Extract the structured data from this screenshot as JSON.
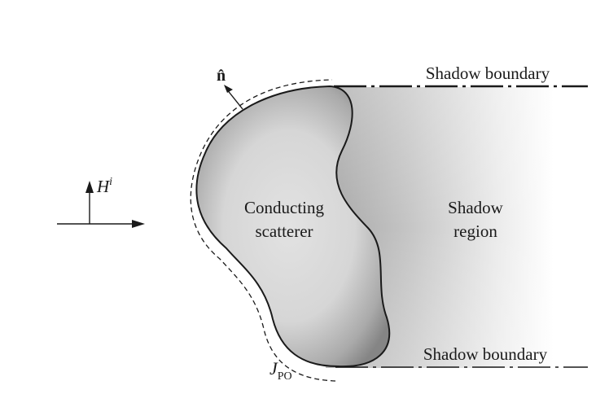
{
  "labels": {
    "normal": "n̂",
    "field_symbol": "H",
    "field_superscript": "i",
    "scatterer_line1": "Conducting",
    "scatterer_line2": "scatterer",
    "shadow_line1": "Shadow",
    "shadow_line2": "region",
    "boundary_top": "Shadow boundary",
    "boundary_bottom": "Shadow boundary",
    "current_symbol": "J",
    "current_subscript": "PO"
  },
  "colors": {
    "ink": "#1a1a1a",
    "scatterer_light": "#dcdcdc",
    "scatterer_dark": "#8c8c8c",
    "shadow_dark": "#a6a6a6"
  }
}
